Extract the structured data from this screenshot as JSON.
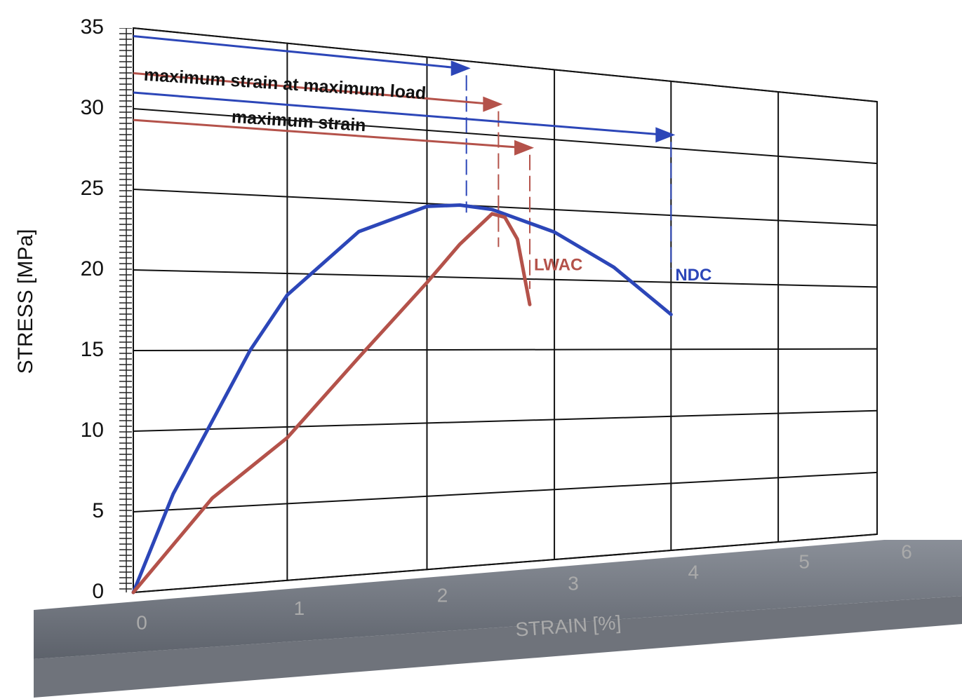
{
  "chart_data": {
    "type": "line",
    "xlabel": "STRAIN  [%]",
    "ylabel": "STRESS [MPa]",
    "xlim": [
      0,
      6
    ],
    "ylim": [
      0,
      35
    ],
    "xticks": [
      0,
      1,
      2,
      3,
      4,
      5,
      6
    ],
    "yticks": [
      0,
      5,
      10,
      15,
      20,
      25,
      30,
      35
    ],
    "grid": true,
    "series": [
      {
        "name": "NDC",
        "color": "#2c46b8",
        "x": [
          0,
          0.25,
          0.5,
          0.75,
          1,
          1.5,
          2,
          2.25,
          2.5,
          3,
          3.5,
          4
        ],
        "values": [
          0,
          6,
          10.5,
          15,
          18.6,
          22.9,
          24.8,
          25,
          24.8,
          23.4,
          21,
          17.6
        ]
      },
      {
        "name": "LWAC",
        "color": "#b4524a",
        "x": [
          0,
          0.5,
          1,
          1.5,
          2,
          2.25,
          2.5,
          2.6,
          2.7,
          2.8
        ],
        "values": [
          0,
          5.6,
          9.3,
          14.5,
          19.6,
          22.3,
          24.5,
          24.3,
          22.8,
          18.2
        ]
      }
    ],
    "annotations": [
      "maximum strain at maximum load",
      "maximum strain"
    ],
    "arrows": [
      {
        "color": "#2c46b8",
        "y": 34.5,
        "x": 2.3
      },
      {
        "color": "#b4524a",
        "y": 32.2,
        "x": 2.55
      },
      {
        "color": "#2c46b8",
        "y": 31,
        "x": 4
      },
      {
        "color": "#b4524a",
        "y": 29.3,
        "x": 2.8
      }
    ]
  }
}
